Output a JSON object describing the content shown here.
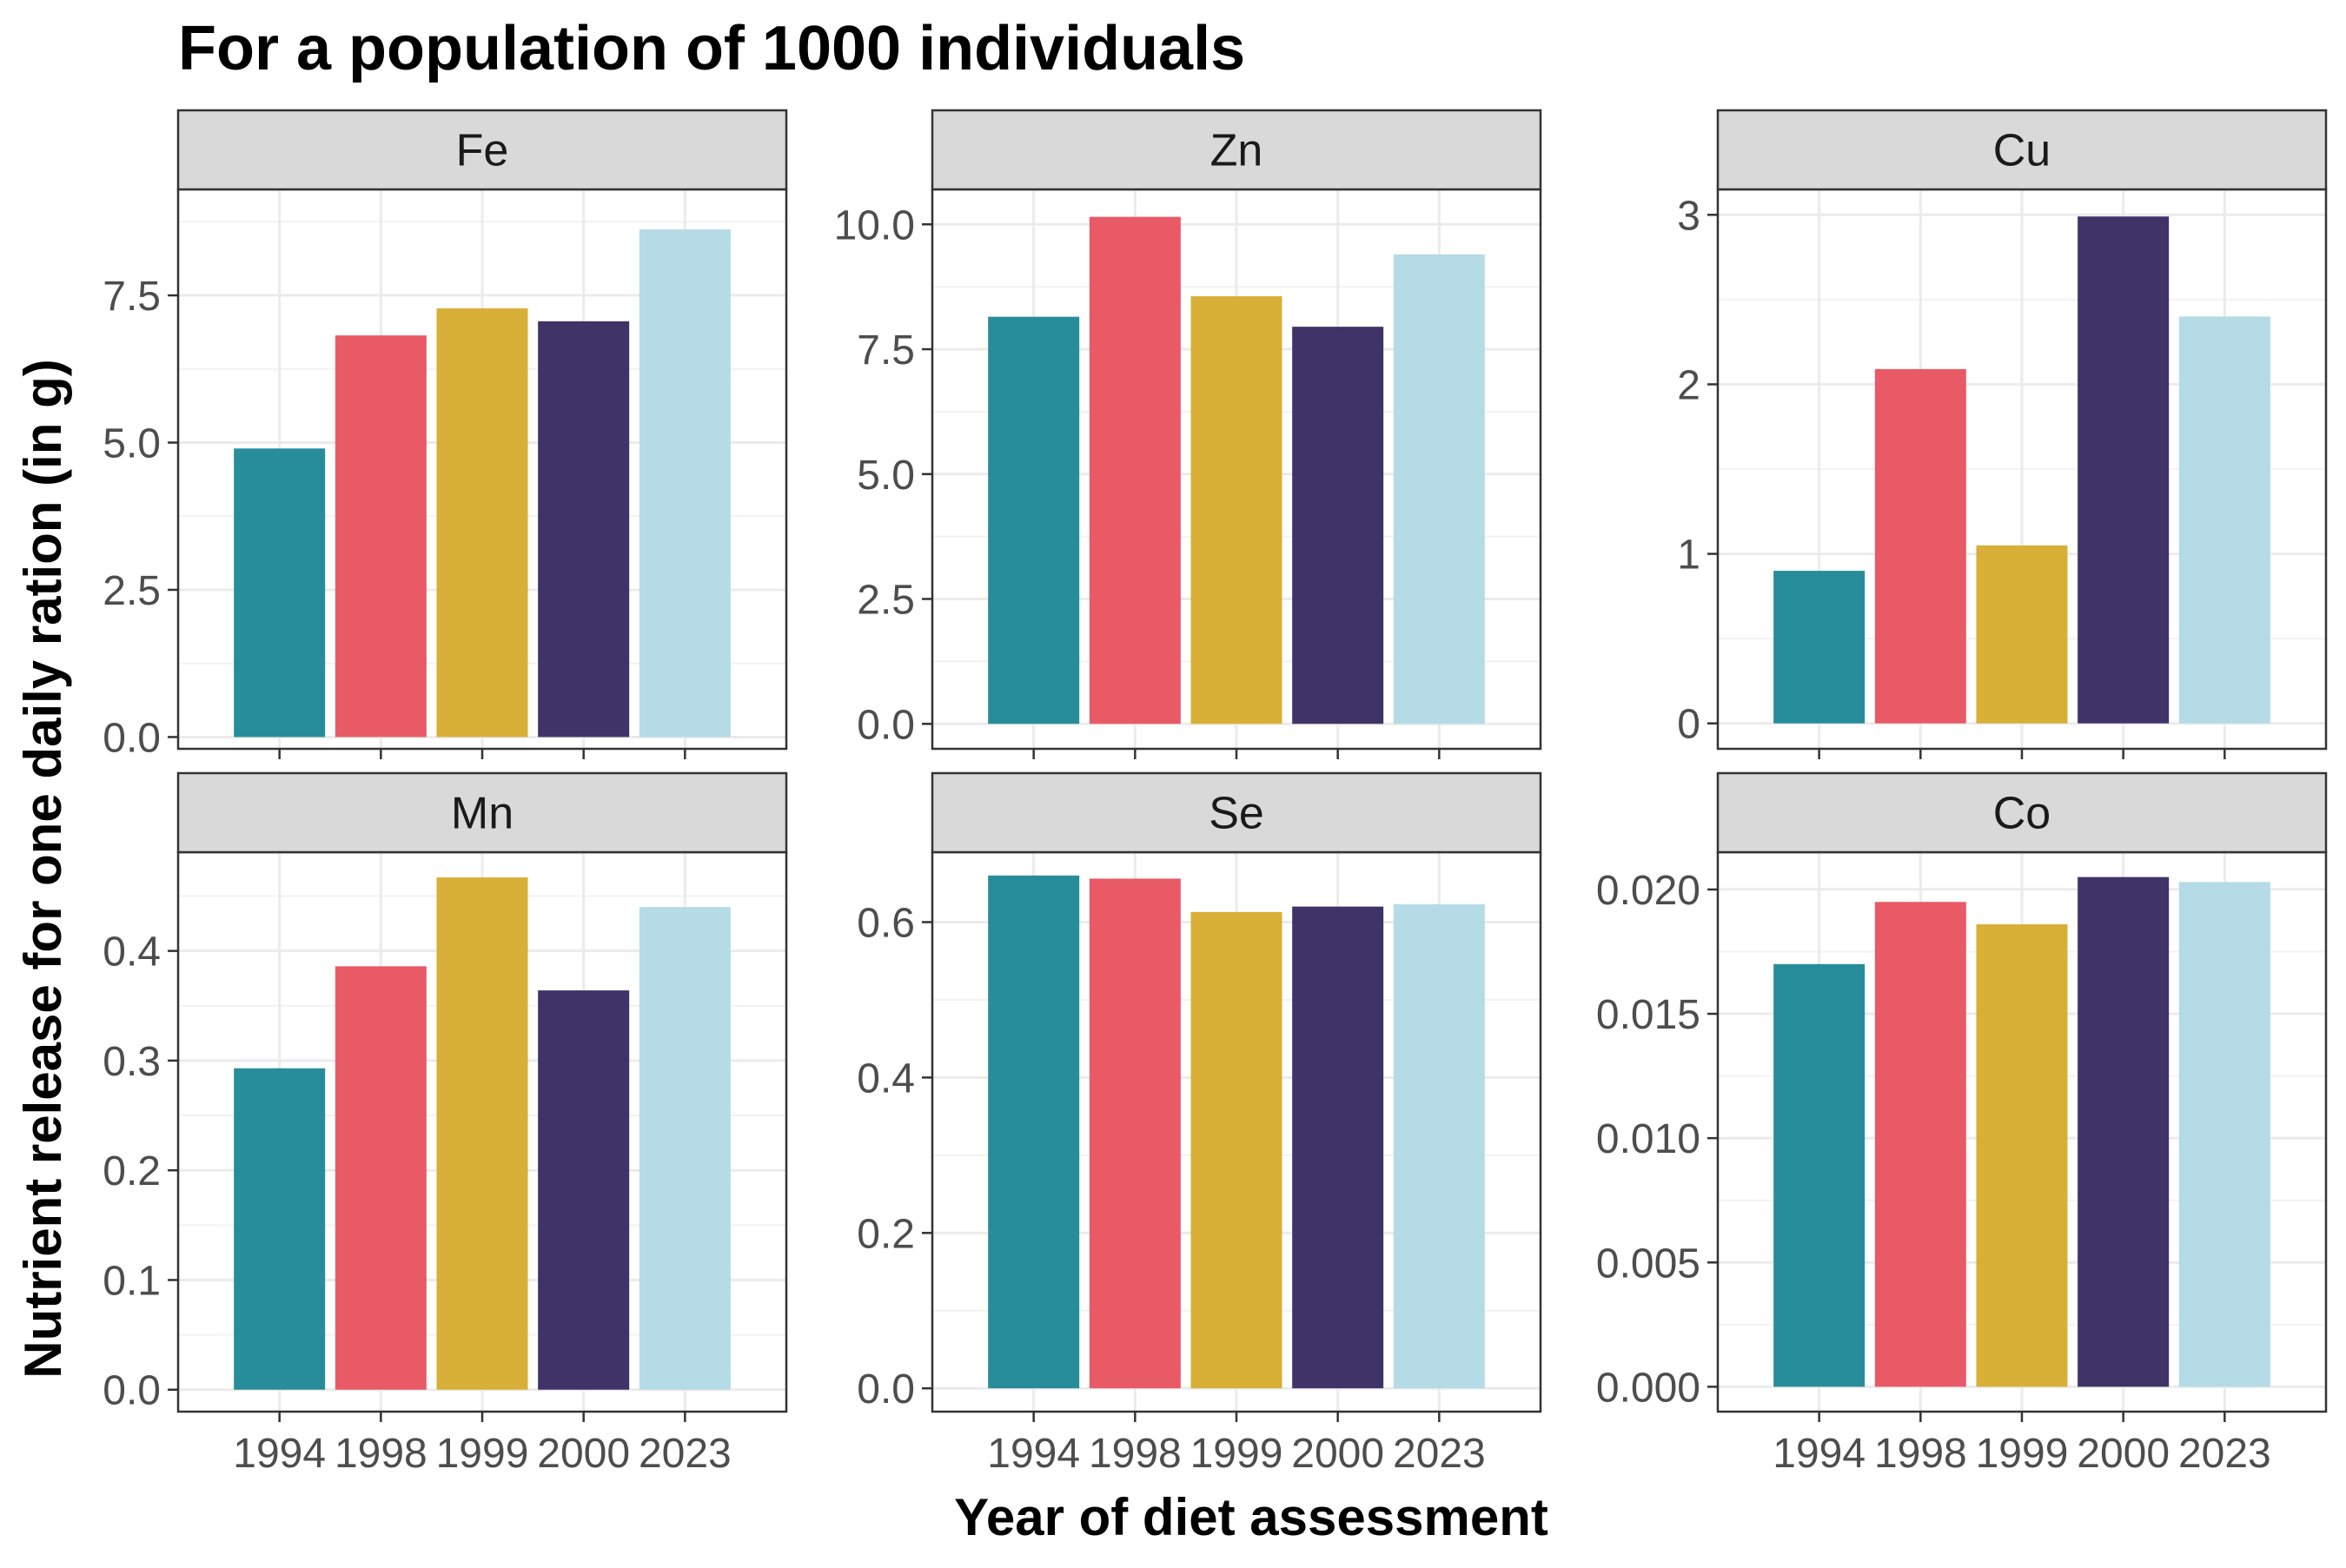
{
  "chart_data": {
    "type": "bar",
    "title": "For a population of 1000 individuals",
    "xlabel": "Year of diet assessment",
    "ylabel": "Nutrient release for one daily ration (in g)",
    "categories": [
      "1994",
      "1998",
      "1999",
      "2000",
      "2023"
    ],
    "colors": [
      "#288D9A",
      "#E85A66",
      "#D8AF37",
      "#3F3368",
      "#B4DBE6"
    ],
    "grid": true,
    "legend": "none",
    "panels": [
      {
        "name": "Fe",
        "values": [
          4.9,
          6.82,
          7.28,
          7.06,
          8.62
        ],
        "ylim": [
          -0.2,
          9.3
        ],
        "ticks": [
          0,
          2.5,
          5,
          7.5
        ],
        "tick_labels": [
          "0.0",
          "2.5",
          "5.0",
          "7.5"
        ]
      },
      {
        "name": "Zn",
        "values": [
          8.15,
          10.15,
          8.56,
          7.95,
          9.4
        ],
        "ylim": [
          -0.5,
          10.7
        ],
        "ticks": [
          0,
          2.5,
          5,
          7.5,
          10
        ],
        "tick_labels": [
          "0.0",
          "2.5",
          "5.0",
          "7.5",
          "10.0"
        ]
      },
      {
        "name": "Cu",
        "values": [
          0.9,
          2.09,
          1.05,
          2.99,
          2.4
        ],
        "ylim": [
          -0.15,
          3.15
        ],
        "ticks": [
          0,
          1,
          2,
          3
        ],
        "tick_labels": [
          "0",
          "1",
          "2",
          "3"
        ]
      },
      {
        "name": "Mn",
        "values": [
          0.293,
          0.386,
          0.467,
          0.364,
          0.44
        ],
        "ylim": [
          -0.02,
          0.49
        ],
        "ticks": [
          0,
          0.1,
          0.2,
          0.3,
          0.4
        ],
        "tick_labels": [
          "0.0",
          "0.1",
          "0.2",
          "0.3",
          "0.4"
        ]
      },
      {
        "name": "Se",
        "values": [
          0.66,
          0.656,
          0.613,
          0.62,
          0.623
        ],
        "ylim": [
          -0.03,
          0.69
        ],
        "ticks": [
          0,
          0.2,
          0.4,
          0.6
        ],
        "tick_labels": [
          "0.0",
          "0.2",
          "0.4",
          "0.6"
        ]
      },
      {
        "name": "Co",
        "values": [
          0.017,
          0.0195,
          0.0186,
          0.0205,
          0.0203
        ],
        "ylim": [
          -0.001,
          0.0215
        ],
        "ticks": [
          0,
          0.005,
          0.01,
          0.015,
          0.02
        ],
        "tick_labels": [
          "0.000",
          "0.005",
          "0.010",
          "0.015",
          "0.020"
        ]
      }
    ]
  }
}
